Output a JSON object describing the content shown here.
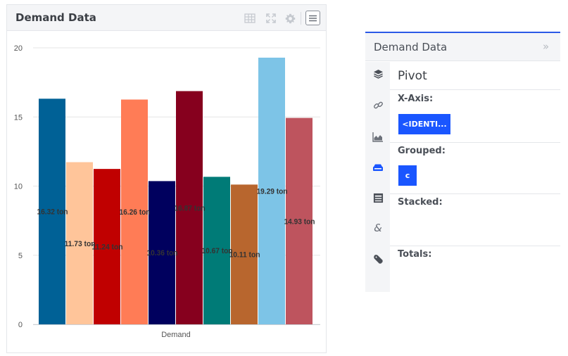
{
  "chart_widget": {
    "title": "Demand Data",
    "icons": [
      "table-icon",
      "expand-icon",
      "gear-icon",
      "menu-icon"
    ]
  },
  "chart_data": {
    "type": "bar",
    "categories": [
      "Demand"
    ],
    "xlabel": "Demand",
    "ylabel": "",
    "ylim": [
      0,
      20
    ],
    "yticks": [
      "0",
      "5",
      "10",
      "15",
      "20"
    ],
    "grid": true,
    "legend": "none",
    "series": [
      {
        "values": [
          16.32
        ],
        "color": "#006196",
        "label": "16.32 ton"
      },
      {
        "values": [
          11.73
        ],
        "color": "#ffc59a",
        "label": "11.73 ton"
      },
      {
        "values": [
          11.24
        ],
        "color": "#c00000",
        "label": "11.24 ton"
      },
      {
        "values": [
          16.26
        ],
        "color": "#ff7c56",
        "label": "16.26 ton"
      },
      {
        "values": [
          10.36
        ],
        "color": "#00005e",
        "label": "10.36 ton"
      },
      {
        "values": [
          16.87
        ],
        "color": "#86001e",
        "label": "16.87 ton"
      },
      {
        "values": [
          10.67
        ],
        "color": "#007b77",
        "label": "10.67 ton"
      },
      {
        "values": [
          10.11
        ],
        "color": "#b8662e",
        "label": "10.11 ton"
      },
      {
        "values": [
          19.29
        ],
        "color": "#7dc4e7",
        "label": "19.29 ton"
      },
      {
        "values": [
          14.93
        ],
        "color": "#be545e",
        "label": "14.93 ton"
      }
    ]
  },
  "pivot_panel": {
    "header_title": "Demand Data",
    "collapse_icon": "double-chevron-right-icon",
    "title": "Pivot",
    "sidebar_icons": [
      "layers-icon",
      "link-icon",
      "area-chart-icon",
      "database-icon",
      "table-list-icon",
      "ampersand-icon",
      "wrench-icon"
    ],
    "x_axis": {
      "label": "X-Axis:",
      "chip": "<IDENTI..."
    },
    "grouped": {
      "label": "Grouped:",
      "chip": "c"
    },
    "stacked": {
      "label": "Stacked:"
    },
    "totals": {
      "label": "Totals:"
    },
    "accent_color": "#1a56ff",
    "topline_color": "#2b59e6"
  }
}
